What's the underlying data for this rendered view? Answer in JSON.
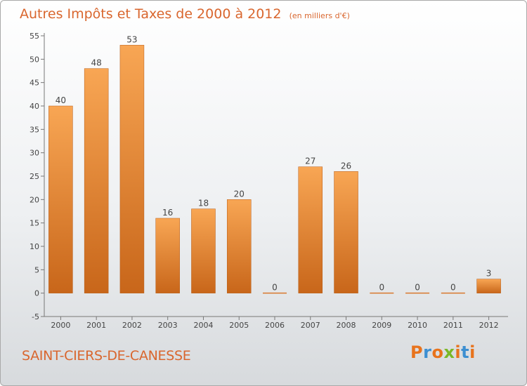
{
  "header": {
    "title": "Autres Impôts et Taxes de 2000 à 2012",
    "unit": "(en milliers d'€)"
  },
  "footer": {
    "commune": "SAINT-CIERS-DE-CANESSE",
    "logo_text": "Proxiti",
    "logo_colors": [
      "#e8731c",
      "#3d8fd1",
      "#e8731c",
      "#7ab827",
      "#e8731c",
      "#3d8fd1",
      "#e8731c"
    ]
  },
  "colors": {
    "text_orange": "#d9662e",
    "bar_light": "#f8a654",
    "bar_dark": "#c8661a",
    "axis": "#777777"
  },
  "chart_data": {
    "type": "bar",
    "title": "Autres Impôts et Taxes de 2000 à 2012",
    "categories": [
      "2000",
      "2001",
      "2002",
      "2003",
      "2004",
      "2005",
      "2006",
      "2007",
      "2008",
      "2009",
      "2010",
      "2011",
      "2012"
    ],
    "values": [
      40,
      48,
      53,
      16,
      18,
      20,
      0,
      27,
      26,
      0,
      0,
      0,
      3
    ],
    "value_labels": [
      "40",
      "48",
      "53",
      "16",
      "18",
      "20",
      "0",
      "27",
      "26",
      "0",
      "0",
      "0",
      "3"
    ],
    "yticks": [
      "-5",
      "0",
      "5",
      "10",
      "15",
      "20",
      "25",
      "30",
      "35",
      "40",
      "45",
      "50",
      "55"
    ],
    "ylim": [
      -5,
      55
    ],
    "grid": false,
    "legend": "none"
  }
}
